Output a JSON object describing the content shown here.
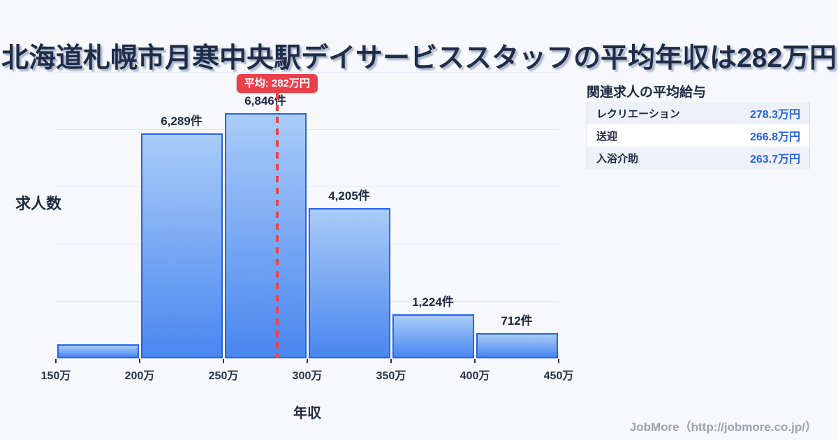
{
  "header": {
    "title": "北海道札幌市月寒中央駅デイサービススタッフの平均年収は282万円"
  },
  "chart_data": {
    "type": "bar",
    "title": "",
    "xlabel": "年収",
    "ylabel": "求人数",
    "x_ticks": [
      "150万",
      "200万",
      "250万",
      "300万",
      "350万",
      "400万",
      "450万"
    ],
    "x_range_man_yen": [
      150,
      450
    ],
    "bin_width_man_yen": 50,
    "values": [
      400,
      6289,
      6846,
      4205,
      1224,
      712
    ],
    "bar_labels": [
      "",
      "6,289件",
      "6,846件",
      "4,205件",
      "1,224件",
      "712件"
    ],
    "ylim": [
      0,
      8000
    ],
    "grid": "horizontal",
    "legend": "none",
    "mean_line": {
      "x_man_yen": 282,
      "badge_label": "平均: 282万円",
      "line_color": "#ee4245",
      "badge_bg": "#e9404b"
    },
    "bar_fill_top": "#a9ccf8",
    "bar_fill_bottom": "#4a86f0",
    "bar_border_color": "#2563eb"
  },
  "side_panel": {
    "title": "関連求人の平均給与",
    "rows": [
      {
        "label": "レクリエーション",
        "value": "278.3万円"
      },
      {
        "label": "送迎",
        "value": "266.8万円"
      },
      {
        "label": "入浴介助",
        "value": "263.7万円"
      }
    ],
    "value_color": "#2563eb"
  },
  "footer": {
    "credit": "JobMore（http://jobmore.co.jp/）"
  }
}
